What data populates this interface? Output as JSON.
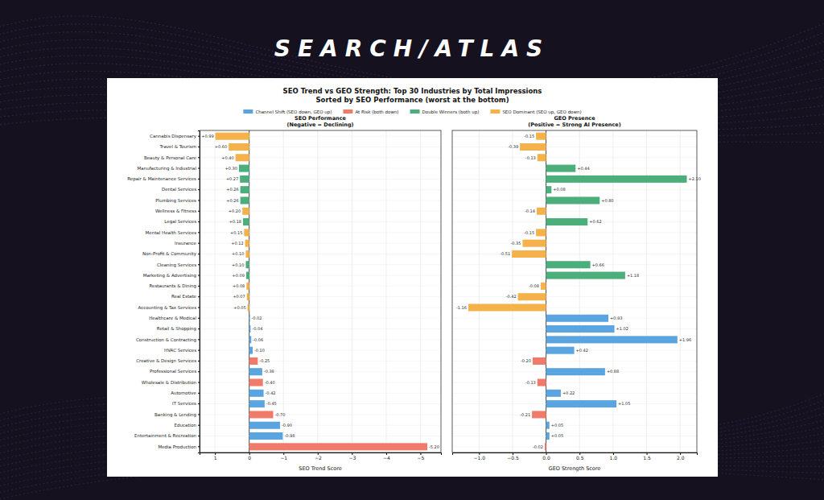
{
  "header": {
    "brand": "SEARCH/ATLAS",
    "title": "SEO Trend vs GEO Strength: Top 30 Industries by Total Impressions",
    "subtitle": "Sorted by SEO Performance (worst at the bottom)"
  },
  "legend_items": [
    {
      "name": "Channel Shift (SEO down, GEO up)",
      "color": "#5aa4e0"
    },
    {
      "name": "At Risk (both down)",
      "color": "#f07b6b"
    },
    {
      "name": "Double Winners (both up)",
      "color": "#4cae7b"
    },
    {
      "name": "SEO Dominant (SEO up, GEO down)",
      "color": "#f5b14a"
    }
  ],
  "chart_data": [
    {
      "type": "bar",
      "orientation": "horizontal",
      "grid": true,
      "data_labels": true,
      "title": "SEO Performance",
      "subtitle": "(Negative = Declining)",
      "xlabel": "SEO Trend Score",
      "categories": [
        "Cannabis Dispensary",
        "Travel & Tourism",
        "Beauty & Personal Care",
        "Manufacturing & Industrial",
        "Repair & Maintenance Services",
        "Dental Services",
        "Plumbing Services",
        "Wellness & Fitness",
        "Legal Services",
        "Mental Health Services",
        "Insurance",
        "Non-Profit & Community",
        "Cleaning Services",
        "Marketing & Advertising",
        "Restaurants & Dining",
        "Real Estate",
        "Accounting & Tax Services",
        "Healthcare & Medical",
        "Retail & Shopping",
        "Construction & Contracting",
        "HVAC Services",
        "Creative & Design Services",
        "Professional Services",
        "Wholesale & Distribution",
        "Automotive",
        "IT Services",
        "Banking & Lending",
        "Education",
        "Entertainment & Recreation",
        "Media Production"
      ],
      "values": [
        0.99,
        0.6,
        0.4,
        0.3,
        0.27,
        0.26,
        0.26,
        0.2,
        0.18,
        0.15,
        0.12,
        0.1,
        0.1,
        0.09,
        0.08,
        0.07,
        0.05,
        -0.02,
        -0.04,
        -0.06,
        -0.1,
        -0.25,
        -0.38,
        -0.4,
        -0.42,
        -0.45,
        -0.7,
        -0.9,
        -0.98,
        -5.2
      ],
      "value_labels": [
        "+0.99",
        "+0.60",
        "+0.40",
        "+0.30",
        "+0.27",
        "+0.26",
        "+0.26",
        "+0.20",
        "+0.18",
        "+0.15",
        "+0.12",
        "+0.10",
        "+0.10",
        "+0.09",
        "+0.08",
        "+0.07",
        "+0.05",
        "-0.02",
        "-0.04",
        "-0.06",
        "-0.10",
        "-0.25",
        "-0.38",
        "-0.40",
        "-0.42",
        "-0.45",
        "-0.70",
        "-0.90",
        "-0.98",
        "-5.20"
      ],
      "colors": [
        "#f5b14a",
        "#f5b14a",
        "#f5b14a",
        "#4cae7b",
        "#4cae7b",
        "#4cae7b",
        "#4cae7b",
        "#f5b14a",
        "#4cae7b",
        "#f5b14a",
        "#f5b14a",
        "#f5b14a",
        "#4cae7b",
        "#4cae7b",
        "#f5b14a",
        "#f5b14a",
        "#f5b14a",
        "#5aa4e0",
        "#5aa4e0",
        "#5aa4e0",
        "#5aa4e0",
        "#f07b6b",
        "#5aa4e0",
        "#f07b6b",
        "#5aa4e0",
        "#5aa4e0",
        "#f07b6b",
        "#5aa4e0",
        "#5aa4e0",
        "#f07b6b"
      ],
      "xlim": [
        1.45,
        -5.6
      ],
      "xticks": [
        1,
        0,
        {
          "value": -1,
          "label": "−1"
        },
        {
          "value": -2,
          "label": "−2"
        },
        {
          "value": -3,
          "label": "−3"
        },
        {
          "value": -4,
          "label": "−4"
        },
        {
          "value": -5,
          "label": "−5"
        }
      ]
    },
    {
      "type": "bar",
      "orientation": "horizontal",
      "grid": true,
      "data_labels": true,
      "tick_labels": "x",
      "title": "GEO Presence",
      "subtitle": "(Positive = Strong AI Presence)",
      "xlabel": "GEO Strength Score",
      "values": [
        -0.15,
        -0.39,
        -0.13,
        0.44,
        2.1,
        0.08,
        0.8,
        -0.14,
        0.62,
        -0.15,
        -0.35,
        -0.51,
        0.66,
        1.18,
        -0.08,
        -0.42,
        -1.16,
        0.93,
        1.02,
        1.96,
        0.42,
        -0.2,
        0.88,
        -0.13,
        0.22,
        1.05,
        -0.21,
        0.05,
        0.05,
        -0.02
      ],
      "value_labels": [
        "-0.15",
        "-0.39",
        "-0.13",
        "+0.44",
        "+2.10",
        "+0.08",
        "+0.80",
        "-0.14",
        "+0.62",
        "-0.15",
        "-0.35",
        "-0.51",
        "+0.66",
        "+1.18",
        "-0.08",
        "-0.42",
        "-1.16",
        "+0.93",
        "+1.02",
        "+1.96",
        "+0.42",
        "-0.20",
        "+0.88",
        "-0.13",
        "+0.22",
        "+1.05",
        "-0.21",
        "+0.05",
        "+0.05",
        "-0.02"
      ],
      "colors": [
        "#f5b14a",
        "#f5b14a",
        "#f5b14a",
        "#4cae7b",
        "#4cae7b",
        "#4cae7b",
        "#4cae7b",
        "#f5b14a",
        "#4cae7b",
        "#f5b14a",
        "#f5b14a",
        "#f5b14a",
        "#4cae7b",
        "#4cae7b",
        "#f5b14a",
        "#f5b14a",
        "#f5b14a",
        "#5aa4e0",
        "#5aa4e0",
        "#5aa4e0",
        "#5aa4e0",
        "#f07b6b",
        "#5aa4e0",
        "#f07b6b",
        "#5aa4e0",
        "#5aa4e0",
        "#f07b6b",
        "#5aa4e0",
        "#5aa4e0",
        "#f07b6b"
      ],
      "xlim": [
        -1.4,
        2.25
      ],
      "xticks": [
        {
          "value": -1,
          "label": "−1.0"
        },
        {
          "value": -0.5,
          "label": "−0.5"
        },
        {
          "value": 0,
          "label": "0.0"
        },
        0.5,
        {
          "value": 1,
          "label": "1.0"
        },
        1.5,
        {
          "value": 2,
          "label": "2.0"
        }
      ]
    }
  ]
}
